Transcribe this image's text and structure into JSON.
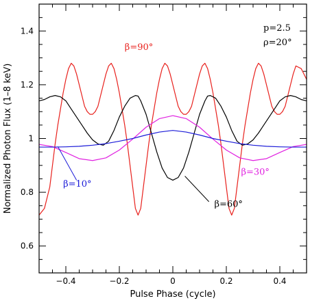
{
  "chart_data": {
    "type": "line",
    "xlabel": "Pulse Phase (cycle)",
    "ylabel": "Normalized Photon Flux (1–8 keV)",
    "xlim": [
      -0.5,
      0.5
    ],
    "ylim": [
      0.5,
      1.5
    ],
    "x_major_ticks": [
      -0.4,
      -0.2,
      0,
      0.2,
      0.4
    ],
    "x_tick_labels": [
      "−0.4",
      "−0.2",
      "0",
      "0.2",
      "0.4"
    ],
    "y_major_ticks": [
      0.6,
      0.8,
      1.0,
      1.2,
      1.4
    ],
    "y_tick_labels": [
      "0.6",
      "0.8",
      "1",
      "1.2",
      "1.4"
    ],
    "params_text": [
      "p=2.5",
      "ρ=20°"
    ],
    "grid": false,
    "series": [
      {
        "name": "β=90°",
        "color": "#e8201c",
        "x": [
          -0.5,
          -0.48,
          -0.46,
          -0.45,
          -0.44,
          -0.43,
          -0.42,
          -0.41,
          -0.4,
          -0.39,
          -0.38,
          -0.37,
          -0.36,
          -0.35,
          -0.34,
          -0.33,
          -0.32,
          -0.31,
          -0.3,
          -0.29,
          -0.28,
          -0.27,
          -0.26,
          -0.25,
          -0.24,
          -0.23,
          -0.22,
          -0.21,
          -0.2,
          -0.19,
          -0.18,
          -0.17,
          -0.16,
          -0.15,
          -0.14,
          -0.13,
          -0.12,
          -0.11,
          -0.1,
          -0.09,
          -0.08,
          -0.07,
          -0.06,
          -0.05,
          -0.04,
          -0.03,
          -0.02,
          -0.01,
          0.0,
          0.01,
          0.02,
          0.03,
          0.04,
          0.05,
          0.06,
          0.07,
          0.08,
          0.09,
          0.1,
          0.11,
          0.12,
          0.13,
          0.14,
          0.15,
          0.16,
          0.17,
          0.18,
          0.19,
          0.2,
          0.21,
          0.22,
          0.23,
          0.24,
          0.25,
          0.26,
          0.27,
          0.28,
          0.29,
          0.3,
          0.31,
          0.32,
          0.33,
          0.34,
          0.35,
          0.36,
          0.37,
          0.38,
          0.39,
          0.4,
          0.41,
          0.42,
          0.43,
          0.44,
          0.45,
          0.46,
          0.48,
          0.5
        ],
        "y": [
          0.715,
          0.74,
          0.82,
          0.9,
          0.98,
          1.05,
          1.11,
          1.17,
          1.22,
          1.26,
          1.28,
          1.27,
          1.24,
          1.2,
          1.16,
          1.12,
          1.1,
          1.09,
          1.09,
          1.1,
          1.12,
          1.16,
          1.2,
          1.24,
          1.27,
          1.28,
          1.26,
          1.22,
          1.17,
          1.11,
          1.05,
          0.98,
          0.9,
          0.82,
          0.74,
          0.715,
          0.74,
          0.82,
          0.9,
          0.98,
          1.05,
          1.11,
          1.17,
          1.22,
          1.26,
          1.28,
          1.27,
          1.24,
          1.2,
          1.16,
          1.12,
          1.1,
          1.09,
          1.09,
          1.1,
          1.12,
          1.16,
          1.2,
          1.24,
          1.27,
          1.28,
          1.26,
          1.22,
          1.17,
          1.11,
          1.05,
          0.98,
          0.9,
          0.82,
          0.74,
          0.715,
          0.74,
          0.82,
          0.9,
          0.98,
          1.05,
          1.11,
          1.17,
          1.22,
          1.26,
          1.28,
          1.27,
          1.24,
          1.2,
          1.16,
          1.12,
          1.1,
          1.09,
          1.09,
          1.1,
          1.12,
          1.16,
          1.2,
          1.24,
          1.27,
          1.26,
          1.22
        ]
      },
      {
        "name": "β=60°",
        "color": "#000000",
        "x": [
          -0.5,
          -0.48,
          -0.46,
          -0.44,
          -0.42,
          -0.4,
          -0.38,
          -0.36,
          -0.34,
          -0.32,
          -0.3,
          -0.28,
          -0.26,
          -0.24,
          -0.22,
          -0.2,
          -0.18,
          -0.16,
          -0.14,
          -0.13,
          -0.12,
          -0.1,
          -0.08,
          -0.06,
          -0.04,
          -0.02,
          0.0,
          0.02,
          0.04,
          0.06,
          0.08,
          0.1,
          0.12,
          0.13,
          0.14,
          0.16,
          0.18,
          0.2,
          0.22,
          0.24,
          0.26,
          0.28,
          0.3,
          0.32,
          0.34,
          0.36,
          0.38,
          0.4,
          0.42,
          0.44,
          0.46,
          0.48,
          0.5
        ],
        "y": [
          1.14,
          1.145,
          1.155,
          1.16,
          1.155,
          1.14,
          1.11,
          1.08,
          1.05,
          1.02,
          0.995,
          0.98,
          0.975,
          0.99,
          1.03,
          1.08,
          1.12,
          1.15,
          1.16,
          1.158,
          1.14,
          1.09,
          1.02,
          0.95,
          0.89,
          0.855,
          0.845,
          0.855,
          0.89,
          0.95,
          1.02,
          1.09,
          1.14,
          1.158,
          1.16,
          1.15,
          1.12,
          1.08,
          1.03,
          0.99,
          0.975,
          0.98,
          0.995,
          1.02,
          1.05,
          1.08,
          1.11,
          1.14,
          1.155,
          1.16,
          1.155,
          1.145,
          1.14
        ]
      },
      {
        "name": "β=30°",
        "color": "#e020e0",
        "x": [
          -0.5,
          -0.45,
          -0.4,
          -0.35,
          -0.3,
          -0.25,
          -0.2,
          -0.15,
          -0.1,
          -0.05,
          0.0,
          0.05,
          0.1,
          0.15,
          0.2,
          0.25,
          0.3,
          0.35,
          0.4,
          0.45,
          0.5
        ],
        "y": [
          0.978,
          0.97,
          0.948,
          0.925,
          0.918,
          0.928,
          0.957,
          0.998,
          1.042,
          1.074,
          1.085,
          1.074,
          1.042,
          0.998,
          0.957,
          0.928,
          0.918,
          0.925,
          0.948,
          0.97,
          0.978
        ]
      },
      {
        "name": "β=10°",
        "color": "#1a1ad8",
        "x": [
          -0.5,
          -0.45,
          -0.4,
          -0.35,
          -0.3,
          -0.25,
          -0.2,
          -0.15,
          -0.1,
          -0.05,
          0.0,
          0.05,
          0.1,
          0.15,
          0.2,
          0.25,
          0.3,
          0.35,
          0.4,
          0.45,
          0.5
        ],
        "y": [
          0.968,
          0.968,
          0.969,
          0.971,
          0.975,
          0.981,
          0.99,
          1.0,
          1.013,
          1.024,
          1.03,
          1.024,
          1.013,
          1.0,
          0.99,
          0.981,
          0.975,
          0.971,
          0.969,
          0.968,
          0.968
        ]
      }
    ],
    "annotations": [
      {
        "text": "β=90°",
        "color": "#e8201c",
        "x": -0.18,
        "y": 1.33
      },
      {
        "text": "β=60°",
        "color": "#000000",
        "x": 0.155,
        "y": 0.745
      },
      {
        "text": "β=30°",
        "color": "#e020e0",
        "x": 0.255,
        "y": 0.865
      },
      {
        "text": "β=10°",
        "color": "#1a1ad8",
        "x": -0.41,
        "y": 0.82
      }
    ],
    "leaders": [
      {
        "color": "#000000",
        "from": [
          0.135,
          0.765
        ],
        "to": [
          0.045,
          0.86
        ]
      },
      {
        "color": "#1a1ad8",
        "from": [
          -0.36,
          0.845
        ],
        "to": [
          -0.43,
          0.97
        ]
      }
    ]
  }
}
